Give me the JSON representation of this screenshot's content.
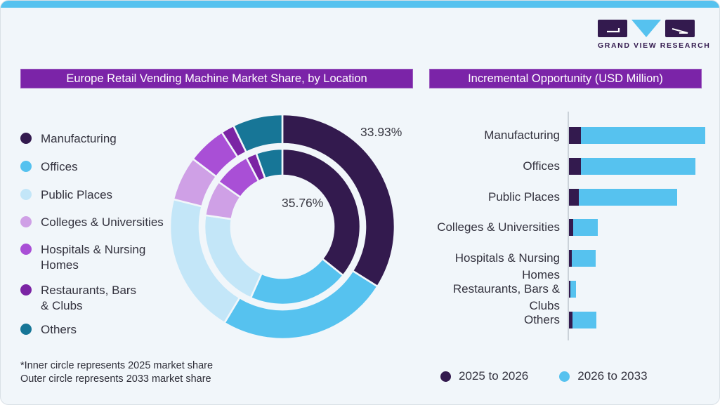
{
  "page": {
    "background": "#F1F6FA",
    "top_strip_color": "#56C2EF",
    "border_color": "#D9E0E6",
    "text_color": "#33323E",
    "banner_color": "#7B24A8"
  },
  "logo": {
    "text": "GRAND VIEW RESEARCH",
    "dark_color": "#331A4E",
    "blue_color": "#56C2EF"
  },
  "chart_data": [
    {
      "type": "donut",
      "title": "Europe Retail Vending Machine Market Share, by Location",
      "categories": [
        "Manufacturing",
        "Offices",
        "Public Places",
        "Colleges & Universities",
        "Hospitals & Nursing Homes",
        "Restaurants, Bars & Clubs",
        "Others"
      ],
      "legend_labels": [
        "Manufacturing",
        "Offices",
        "Public Places",
        "Colleges & Universities",
        "Hospitals & Nursing\nHomes",
        "Restaurants, Bars\n& Clubs",
        "Others"
      ],
      "colors": [
        "#331A4E",
        "#56C2EF",
        "#C3E6F8",
        "#CFA0E6",
        "#A94FD6",
        "#7B24A4",
        "#177697"
      ],
      "rings": [
        {
          "name": "2033 market share (outer circle)",
          "values": [
            33.93,
            24.7,
            20.3,
            6.4,
            5.6,
            1.9,
            7.17
          ]
        },
        {
          "name": "2025 market share (inner circle)",
          "values": [
            35.76,
            20.9,
            20.7,
            7.4,
            7.6,
            2.2,
            5.44
          ]
        }
      ],
      "data_labels": [
        {
          "text": "33.93%",
          "ring": "outer",
          "category": "Manufacturing"
        },
        {
          "text": "35.76%",
          "ring": "inner",
          "category": "Manufacturing"
        }
      ],
      "footnote_lines": [
        "*Inner circle represents 2025 market share",
        "Outer circle represents 2033 market share"
      ],
      "legend_position": "left",
      "start_angle_deg": 0,
      "direction": "clockwise"
    },
    {
      "type": "bar",
      "orientation": "horizontal",
      "stacked": true,
      "title": "Incremental Opportunity (USD Million)",
      "categories": [
        "Manufacturing",
        "Offices",
        "Public Places",
        "Colleges & Universities",
        "Hospitals & Nursing Homes",
        "Restaurants, Bars & Clubs",
        "Others"
      ],
      "series": [
        {
          "name": "2025 to 2026",
          "color": "#331A4E",
          "values": [
            17,
            17,
            14,
            6,
            4,
            1.5,
            5
          ]
        },
        {
          "name": "2026 to 2033",
          "color": "#56C2EF",
          "values": [
            177,
            163,
            140,
            35,
            34,
            8,
            34
          ]
        }
      ],
      "value_axis_note": "axis unlabeled; values are relative lengths estimated from the chart",
      "legend_position": "bottom",
      "grid": false
    }
  ]
}
